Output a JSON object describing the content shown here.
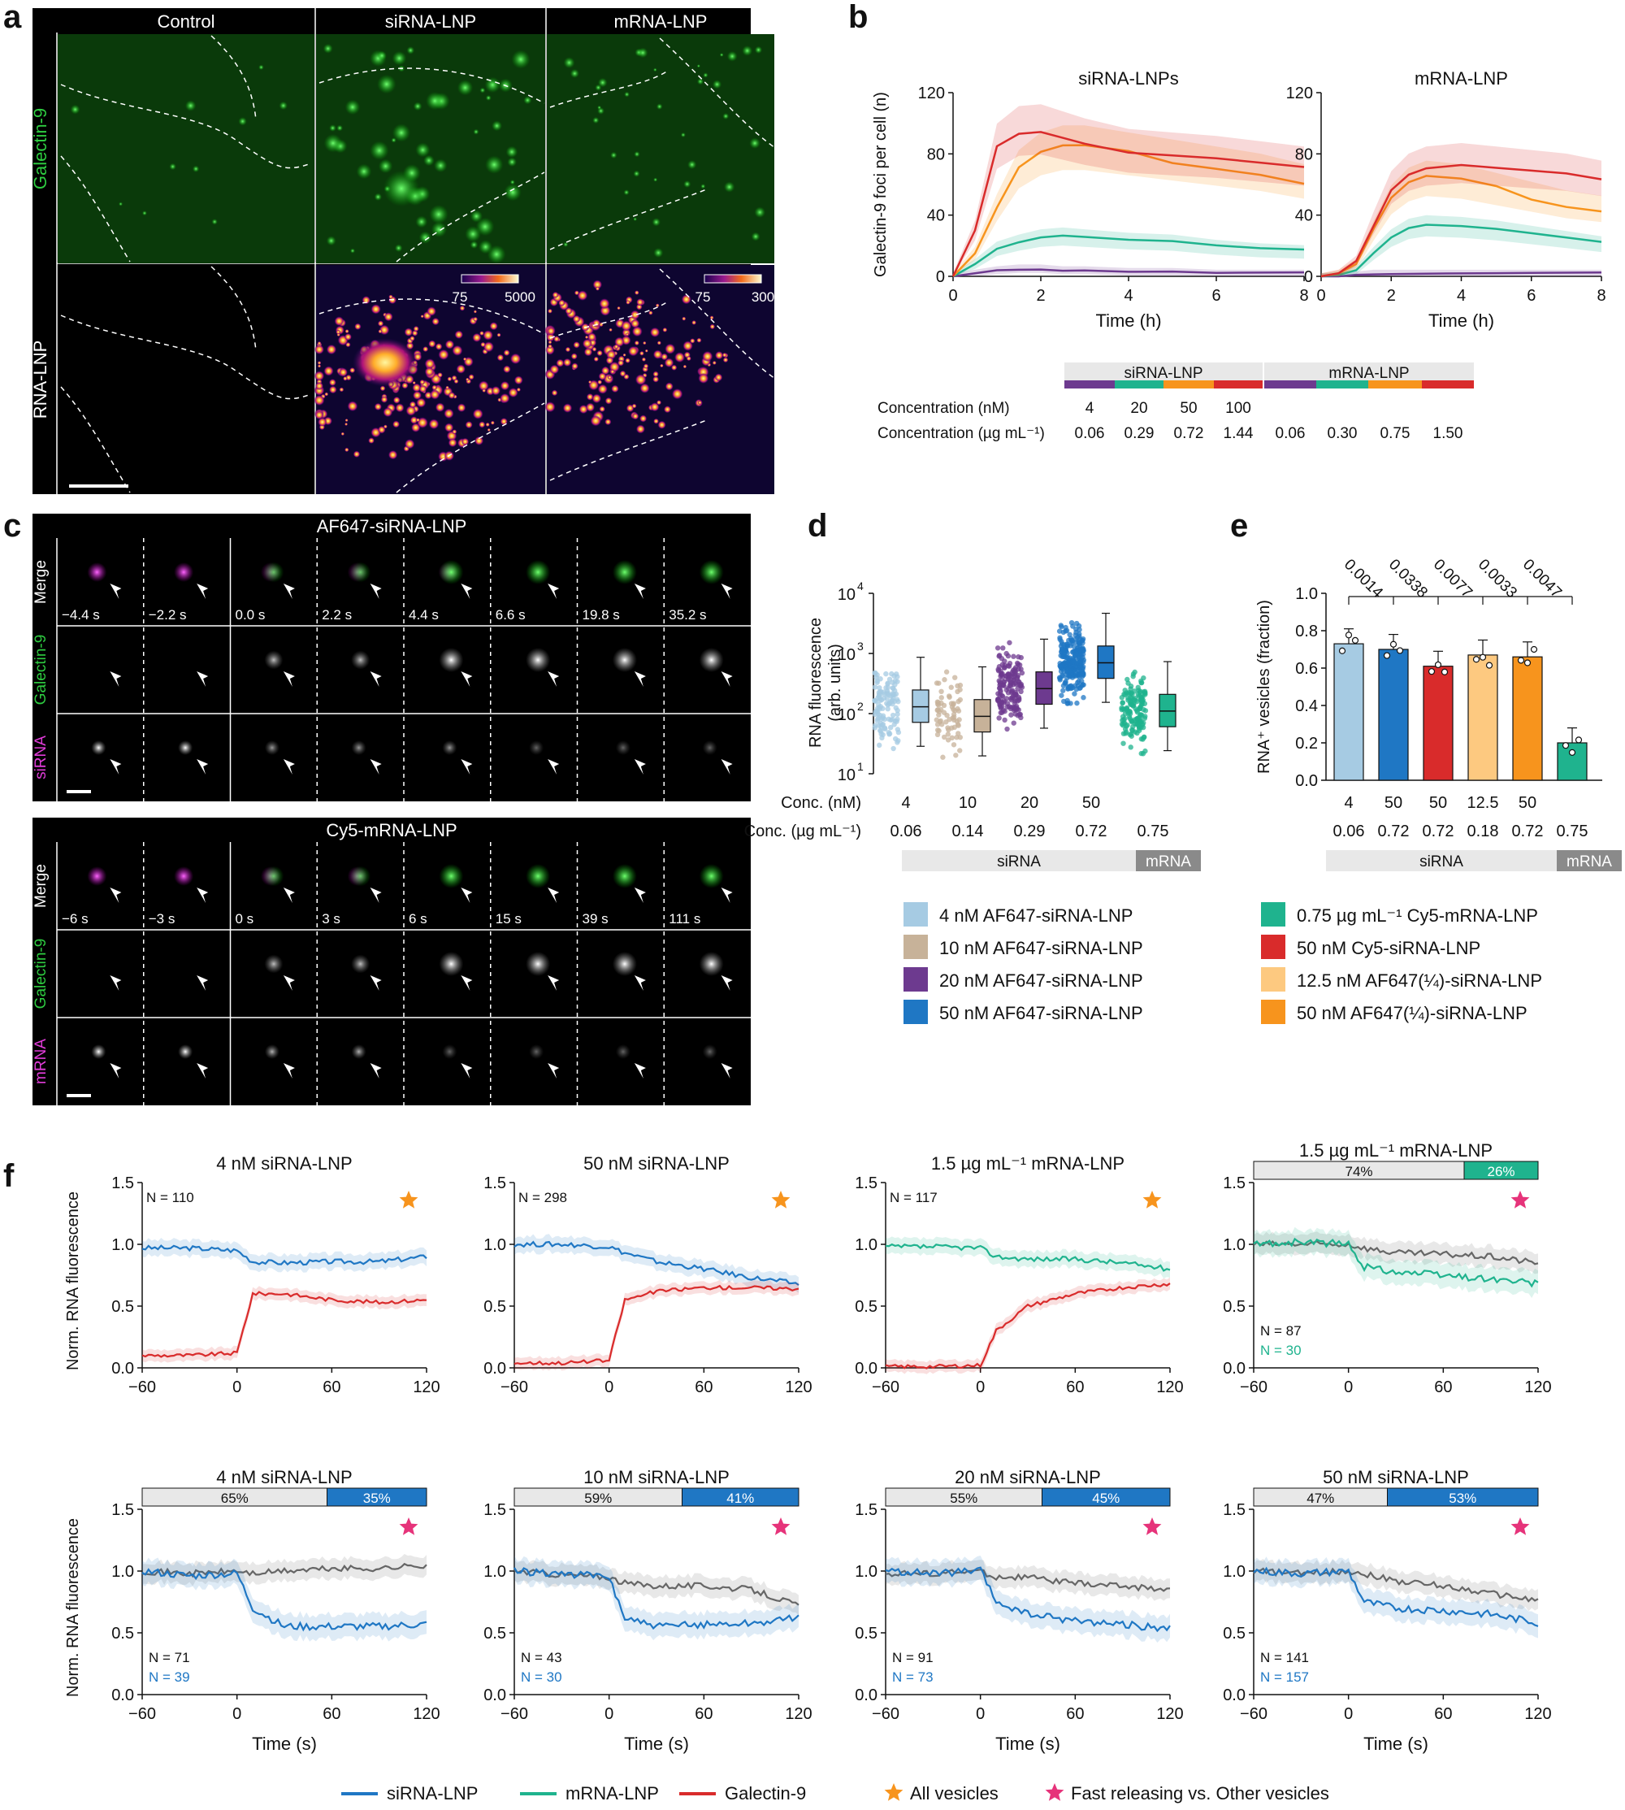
{
  "panel_letters": {
    "a": "a",
    "b": "b",
    "c": "c",
    "d": "d",
    "e": "e",
    "f": "f"
  },
  "colors": {
    "purple": "#6d3a8f",
    "teal": "#1fb38e",
    "orange": "#f7941d",
    "red": "#d92b2b",
    "lightblue": "#a6cbe3",
    "tan": "#c7b299",
    "blue": "#1f77c4",
    "lightorange": "#fdc980",
    "green": "#2ecc40",
    "magenta": "#e03cd8",
    "gray": "#666666",
    "pink": "#e6337a"
  },
  "panel_a": {
    "columns": [
      "Control",
      "siRNA-LNP",
      "mRNA-LNP"
    ],
    "rows": [
      "Galectin-9",
      "RNA-LNP"
    ],
    "colorbar1": {
      "min": "75",
      "max": "5000"
    },
    "colorbar2": {
      "min": "75",
      "max": "300"
    }
  },
  "panel_b": {
    "ylabel": "Galectin-9 foci per cell (n)",
    "xlabel": "Time (h)",
    "yticks": [
      "0",
      "40",
      "80",
      "120"
    ],
    "xticks": [
      "0",
      "2",
      "4",
      "6",
      "8"
    ],
    "legend": {
      "group1": "siRNA-LNP",
      "group2": "mRNA-LNP",
      "row1_label": "Concentration (nM)",
      "row2_label": "Concentration (µg mL⁻¹)",
      "sirna_nM": [
        "4",
        "20",
        "50",
        "100"
      ],
      "sirna_ug": [
        "0.06",
        "0.29",
        "0.72",
        "1.44"
      ],
      "mrna_ug": [
        "0.06",
        "0.30",
        "0.75",
        "1.50"
      ]
    }
  },
  "panel_c": {
    "title1": "AF647-siRNA-LNP",
    "title2": "Cy5-mRNA-LNP",
    "rows1": [
      "Merge",
      "Galectin-9",
      "siRNA"
    ],
    "rows2": [
      "Merge",
      "Galectin-9",
      "mRNA"
    ],
    "times1": [
      "−4.4 s",
      "−2.2 s",
      "0.0 s",
      "2.2 s",
      "4.4 s",
      "6.6 s",
      "19.8 s",
      "35.2 s"
    ],
    "times2": [
      "−6 s",
      "−3 s",
      "0 s",
      "3 s",
      "6 s",
      "15 s",
      "39 s",
      "111 s"
    ]
  },
  "panel_d": {
    "ylabel1": "RNA fluorescence",
    "ylabel2": "(arb. units)",
    "yticks": [
      "10",
      "10",
      "10",
      "10"
    ],
    "yexp": [
      "1",
      "2",
      "3",
      "4"
    ],
    "conc_label": "Conc. (nM)",
    "conc2_label": "Conc. (µg mL⁻¹)",
    "conc_nM": [
      "4",
      "10",
      "20",
      "50",
      ""
    ],
    "conc_ug": [
      "0.06",
      "0.14",
      "0.29",
      "0.72",
      "0.75"
    ],
    "bar_sirna": "siRNA",
    "bar_mrna": "mRNA",
    "legend": [
      "4 nM AF647-siRNA-LNP",
      "10 nM AF647-siRNA-LNP",
      "20 nM AF647-siRNA-LNP",
      "50 nM AF647-siRNA-LNP"
    ]
  },
  "panel_e": {
    "ylabel": "RNA⁺ vesicles (fraction)",
    "yticks": [
      "0.0",
      "0.2",
      "0.4",
      "0.6",
      "0.8",
      "1.0"
    ],
    "pvalues": [
      "0.0014",
      "0.0338",
      "0.0077",
      "0.0033",
      "0.0047"
    ],
    "x1": [
      "4",
      "50",
      "50",
      "12.5",
      "50",
      ""
    ],
    "x2": [
      "0.06",
      "0.72",
      "0.72",
      "0.18",
      "0.72",
      "0.75"
    ],
    "bar_sirna": "siRNA",
    "bar_mrna": "mRNA",
    "legend": [
      "0.75 µg mL⁻¹ Cy5-mRNA-LNP",
      "50 nM Cy5-siRNA-LNP",
      "12.5 nM AF647(¼)-siRNA-LNP",
      "50 nM AF647(¼)-siRNA-LNP"
    ]
  },
  "panel_f": {
    "ylabel": "Norm. RNA fluorescence",
    "xlabel": "Time (s)",
    "yticks": [
      "0.0",
      "0.5",
      "1.0",
      "1.5"
    ],
    "xticks": [
      "−60",
      "0",
      "60",
      "120"
    ],
    "plots": [
      {
        "title": "4 nM siRNA-LNP",
        "n1": "N = 110",
        "n2": "",
        "split": null
      },
      {
        "title": "50 nM siRNA-LNP",
        "n1": "N = 298",
        "n2": "",
        "split": null
      },
      {
        "title": "1.5 µg mL⁻¹ mRNA-LNP",
        "n1": "N = 117",
        "n2": "",
        "split": null
      },
      {
        "title": "1.5 µg mL⁻¹ mRNA-LNP",
        "n1": "N = 87",
        "n2": "N = 30",
        "split": [
          "74%",
          "26%"
        ]
      },
      {
        "title": "4 nM siRNA-LNP",
        "n1": "N = 71",
        "n2": "N = 39",
        "split": [
          "65%",
          "35%"
        ]
      },
      {
        "title": "10 nM siRNA-LNP",
        "n1": "N = 43",
        "n2": "N = 30",
        "split": [
          "59%",
          "41%"
        ]
      },
      {
        "title": "20 nM siRNA-LNP",
        "n1": "N = 91",
        "n2": "N = 73",
        "split": [
          "55%",
          "45%"
        ]
      },
      {
        "title": "50 nM siRNA-LNP",
        "n1": "N = 141",
        "n2": "N = 157",
        "split": [
          "47%",
          "53%"
        ]
      }
    ],
    "legend": [
      "siRNA-LNP",
      "mRNA-LNP",
      "Galectin-9",
      "All vesicles",
      "Fast releasing vs. Other vesicles"
    ]
  },
  "chart_data": [
    {
      "type": "line",
      "title": "siRNA-LNPs",
      "xlabel": "Time (h)",
      "ylabel": "Galectin-9 foci per cell (n)",
      "ylim": [
        0,
        120
      ],
      "xlim": [
        0,
        8
      ],
      "x": [
        0,
        0.5,
        1,
        1.5,
        2,
        2.5,
        3,
        4,
        5,
        6,
        7,
        8
      ],
      "series": [
        {
          "name": "4",
          "values": [
            0,
            2,
            4,
            5,
            5,
            4,
            4,
            3,
            3,
            2,
            2,
            2
          ]
        },
        {
          "name": "20",
          "values": [
            0,
            8,
            18,
            22,
            25,
            26,
            25,
            23,
            22,
            19,
            17,
            16
          ]
        },
        {
          "name": "50",
          "values": [
            0,
            15,
            45,
            70,
            80,
            84,
            84,
            80,
            76,
            72,
            68,
            62
          ]
        },
        {
          "name": "100",
          "values": [
            0,
            30,
            85,
            95,
            96,
            92,
            88,
            82,
            80,
            78,
            75,
            72
          ]
        }
      ]
    },
    {
      "type": "line",
      "title": "mRNA-LNP",
      "xlabel": "Time (h)",
      "ylim": [
        0,
        120
      ],
      "xlim": [
        0,
        8
      ],
      "x": [
        0,
        0.5,
        1,
        1.5,
        2,
        2.5,
        3,
        4,
        5,
        6,
        7,
        8
      ],
      "series": [
        {
          "name": "0.06",
          "values": [
            0,
            0,
            1,
            2,
            2,
            2,
            2,
            2,
            2,
            2,
            2,
            2
          ]
        },
        {
          "name": "0.30",
          "values": [
            0,
            1,
            4,
            15,
            25,
            31,
            33,
            32,
            30,
            27,
            24,
            21
          ]
        },
        {
          "name": "0.75",
          "values": [
            0,
            2,
            8,
            30,
            50,
            60,
            64,
            62,
            57,
            52,
            47,
            44
          ]
        },
        {
          "name": "1.50",
          "values": [
            0,
            2,
            10,
            35,
            58,
            68,
            72,
            74,
            72,
            70,
            68,
            64
          ]
        }
      ]
    },
    {
      "type": "scatter",
      "xlabel": "Conc. (nM)",
      "ylabel": "RNA fluorescence (arb. units)",
      "log_y": true,
      "categories": [
        "4",
        "10",
        "20",
        "50",
        "0.75"
      ],
      "medians": [
        130,
        90,
        260,
        700,
        110
      ]
    },
    {
      "type": "bar",
      "ylabel": "RNA⁺ vesicles (fraction)",
      "ylim": [
        0,
        1
      ],
      "categories": [
        "4",
        "50",
        "50",
        "12.5",
        "50",
        "0.75"
      ],
      "values": [
        0.73,
        0.7,
        0.61,
        0.67,
        0.66,
        0.2
      ]
    },
    {
      "type": "line",
      "xlabel": "Time (s)",
      "ylabel": "Norm. RNA fluorescence",
      "xlim": [
        -60,
        120
      ],
      "ylim": [
        0,
        1.5
      ],
      "x": [
        -60,
        -30,
        0,
        10,
        30,
        60,
        90,
        120
      ],
      "series_by_plot": [
        {
          "rna": [
            0.97,
            0.97,
            0.95,
            0.86,
            0.85,
            0.86,
            0.86,
            0.9
          ],
          "gal": [
            0.1,
            0.1,
            0.12,
            0.6,
            0.6,
            0.55,
            0.53,
            0.55
          ]
        },
        {
          "rna": [
            1.0,
            1.0,
            0.98,
            0.93,
            0.86,
            0.8,
            0.73,
            0.68
          ],
          "gal": [
            0.04,
            0.04,
            0.06,
            0.55,
            0.62,
            0.65,
            0.65,
            0.64
          ]
        },
        {
          "rna": [
            0.98,
            0.98,
            0.97,
            0.9,
            0.88,
            0.88,
            0.85,
            0.8
          ],
          "gal": [
            0.01,
            0.01,
            0.02,
            0.3,
            0.5,
            0.6,
            0.65,
            0.68
          ]
        },
        {
          "other": [
            1.0,
            1.0,
            1.0,
            0.97,
            0.93,
            0.92,
            0.9,
            0.85
          ],
          "fast": [
            1.0,
            1.02,
            1.0,
            0.82,
            0.78,
            0.75,
            0.72,
            0.68
          ]
        },
        {
          "other": [
            1.0,
            0.98,
            1.0,
            0.98,
            1.0,
            1.02,
            1.02,
            1.05
          ],
          "fast": [
            1.0,
            0.96,
            0.98,
            0.7,
            0.55,
            0.55,
            0.55,
            0.57
          ]
        },
        {
          "other": [
            1.0,
            0.97,
            0.95,
            0.9,
            0.88,
            0.88,
            0.85,
            0.72
          ],
          "fast": [
            1.0,
            0.98,
            0.95,
            0.62,
            0.55,
            0.57,
            0.58,
            0.62
          ]
        },
        {
          "other": [
            0.98,
            0.98,
            1.0,
            0.95,
            0.95,
            0.9,
            0.88,
            0.85
          ],
          "fast": [
            1.0,
            0.98,
            1.0,
            0.75,
            0.65,
            0.6,
            0.57,
            0.53
          ]
        },
        {
          "other": [
            1.0,
            0.98,
            1.0,
            0.98,
            0.92,
            0.88,
            0.82,
            0.76
          ],
          "fast": [
            1.0,
            0.98,
            1.0,
            0.75,
            0.7,
            0.68,
            0.65,
            0.58
          ]
        }
      ]
    }
  ]
}
